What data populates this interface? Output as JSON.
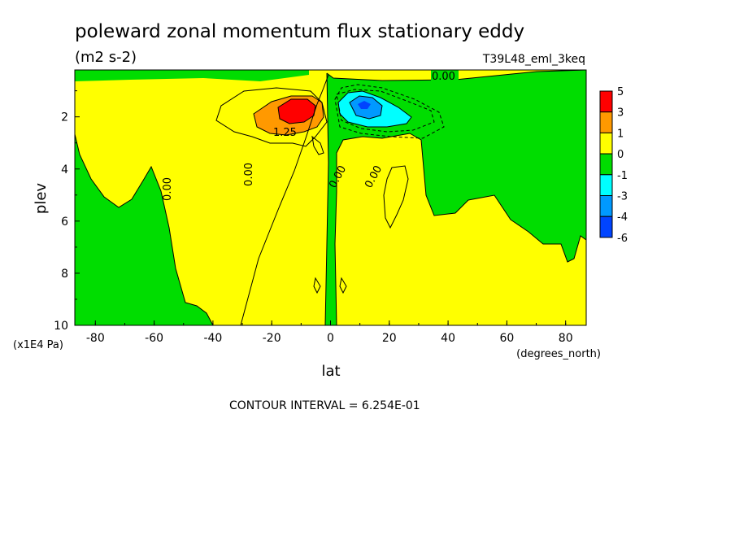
{
  "chart_data": {
    "type": "heatmap",
    "title": "poleward zonal momentum flux stationary eddy",
    "subtitle": "(m2 s-2)",
    "dataset": "T39L48_eml_3keq",
    "xlabel": "lat",
    "xunits": "(degrees_north)",
    "ylabel": "plev",
    "yunits": "(x1E4 Pa)",
    "xlim": [
      -87,
      87
    ],
    "ylim": [
      10,
      0.2
    ],
    "x_ticks": [
      "-80",
      "-60",
      "-40",
      "-20",
      "0",
      "20",
      "40",
      "60",
      "80"
    ],
    "y_ticks": [
      "2",
      "4",
      "6",
      "8",
      "10"
    ],
    "contour_interval": "CONTOUR INTERVAL = 6.254E-01",
    "contour_labels": [
      "0.00",
      "0.00",
      "0.00",
      "0.00",
      "0.00",
      "1.25"
    ],
    "colorbar": {
      "labels": [
        "5",
        "3",
        "1",
        "0",
        "-1",
        "-3",
        "-4",
        "-6"
      ],
      "colors": [
        "#ff0000",
        "#ff9900",
        "#ffff00",
        "#00dd00",
        "#00ffff",
        "#0099ff",
        "#0044ff"
      ]
    },
    "features": [
      {
        "name": "positive maximum",
        "lat": -13,
        "plev": 1.5,
        "value": 5
      },
      {
        "name": "negative minimum",
        "lat": 12,
        "plev": 1.5,
        "value": -6
      }
    ]
  }
}
